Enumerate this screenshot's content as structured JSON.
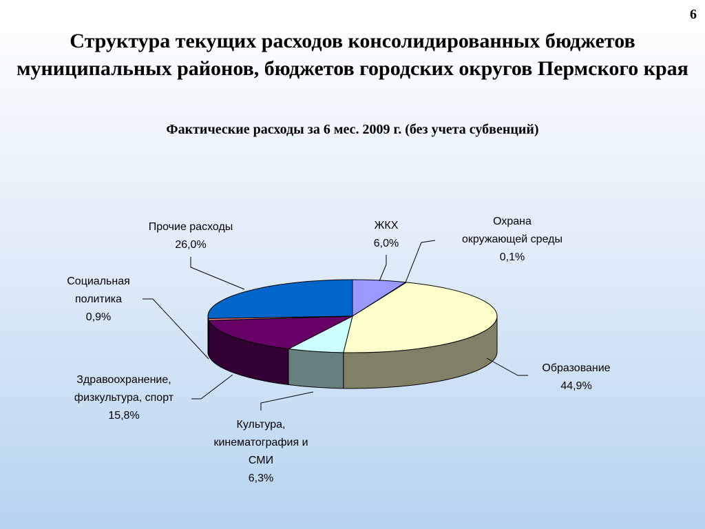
{
  "slide": {
    "number": "6",
    "title": "Структура текущих расходов консолидированных бюджетов муниципальных районов, бюджетов городских округов Пермского края",
    "subtitle": "Фактические расходы за 6 мес. 2009 г. (без учета субвенций)"
  },
  "chart_data": {
    "type": "pie",
    "three_d": true,
    "title": "Фактические расходы за 6 мес. 2009 г. (без учета субвенций)",
    "unit": "%",
    "legend": "none",
    "series": [
      {
        "slices": [
          {
            "name": "ЖКХ",
            "value": 6.0,
            "value_label": "6,0%",
            "color": "#9999FF",
            "label_lines": [
              "ЖКХ"
            ]
          },
          {
            "name": "Охрана окружающей среды",
            "value": 0.1,
            "value_label": "0,1%",
            "color": "#7F7F7F",
            "label_lines": [
              "Охрана",
              "окружающей среды"
            ]
          },
          {
            "name": "Образование",
            "value": 44.9,
            "value_label": "44,9%",
            "color": "#FFFFCC",
            "label_lines": [
              "Образование"
            ]
          },
          {
            "name": "Культура, кинематография и СМИ",
            "value": 6.3,
            "value_label": "6,3%",
            "color": "#CCFFFF",
            "label_lines": [
              "Культура,",
              "кинематография и",
              "СМИ"
            ]
          },
          {
            "name": "Здравоохранение, физкультура, спорт",
            "value": 15.8,
            "value_label": "15,8%",
            "color": "#660066",
            "label_lines": [
              "Здравоохранение,",
              "физкультура, спорт"
            ]
          },
          {
            "name": "Социальная политика",
            "value": 0.9,
            "value_label": "0,9%",
            "color": "#FF8080",
            "label_lines": [
              "Социальная",
              "политика"
            ]
          },
          {
            "name": "Прочие расходы",
            "value": 26.0,
            "value_label": "26,0%",
            "color": "#0066CC",
            "label_lines": [
              "Прочие расходы"
            ]
          }
        ]
      }
    ]
  }
}
